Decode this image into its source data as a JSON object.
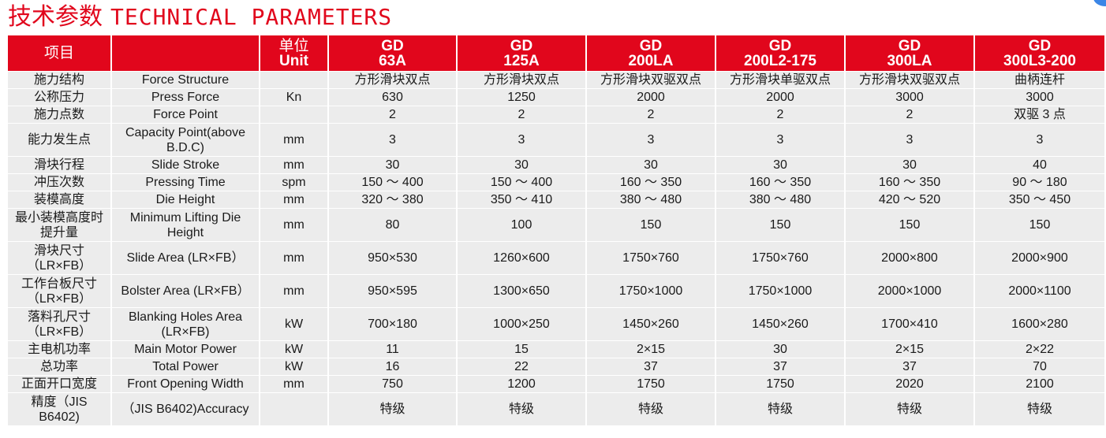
{
  "title": {
    "cn": "技术参数",
    "en": "TECHNICAL PARAMETERS"
  },
  "header": {
    "item": "项目",
    "blank": "",
    "unit_cn": "单位",
    "unit_en": "Unit",
    "models": [
      [
        "GD",
        "63A"
      ],
      [
        "GD",
        "125A"
      ],
      [
        "GD",
        "200LA"
      ],
      [
        "GD",
        "200L2-175"
      ],
      [
        "GD",
        "300LA"
      ],
      [
        "GD",
        "300L3-200"
      ]
    ]
  },
  "rows": [
    {
      "cn": "施力结构",
      "en": "Force Structure",
      "unit": "",
      "values": [
        "方形滑块双点",
        "方形滑块双点",
        "方形滑块双驱双点",
        "方形滑块单驱双点",
        "方形滑块双驱双点",
        "曲柄连杆"
      ]
    },
    {
      "cn": "公称压力",
      "en": "Press Force",
      "unit": "Kn",
      "values": [
        "630",
        "1250",
        "2000",
        "2000",
        "3000",
        "3000"
      ]
    },
    {
      "cn": "施力点数",
      "en": "Force Point",
      "unit": "",
      "values": [
        "2",
        "2",
        "2",
        "2",
        "2",
        "双驱 3 点"
      ]
    },
    {
      "cn": "能力发生点",
      "en": "Capacity Point(above B.D.C)",
      "unit": "mm",
      "values": [
        "3",
        "3",
        "3",
        "3",
        "3",
        "3"
      ],
      "tall": true
    },
    {
      "cn": "滑块行程",
      "en": "Slide Stroke",
      "unit": "mm",
      "values": [
        "30",
        "30",
        "30",
        "30",
        "30",
        "40"
      ]
    },
    {
      "cn": "冲压次数",
      "en": "Pressing Time",
      "unit": "spm",
      "values": [
        "150 ～ 400",
        "150 ～ 400",
        "160 ～ 350",
        "160 ～ 350",
        "160 ～ 350",
        "90 ～ 180"
      ]
    },
    {
      "cn": "装模高度",
      "en": "Die Height",
      "unit": "mm",
      "values": [
        "320 ～ 380",
        "350 ～ 410",
        "380 ～ 480",
        "380 ～ 480",
        "420 ～ 520",
        "350 ～ 450"
      ]
    },
    {
      "cn": "最小装模高度时提升量",
      "en": "Minimum Lifting Die Height",
      "unit": "mm",
      "values": [
        "80",
        "100",
        "150",
        "150",
        "150",
        "150"
      ],
      "tall": true
    },
    {
      "cn": "滑块尺寸（LR×FB）",
      "en": "Slide Area (LR×FB）",
      "unit": "mm",
      "values": [
        "950×530",
        "1260×600",
        "1750×760",
        "1750×760",
        "2000×800",
        "2000×900"
      ],
      "tall": true
    },
    {
      "cn": "工作台板尺寸（LR×FB）",
      "en": "Bolster Area (LR×FB）",
      "unit": "mm",
      "values": [
        "950×595",
        "1300×650",
        "1750×1000",
        "1750×1000",
        "2000×1000",
        "2000×1100"
      ],
      "tall": true
    },
    {
      "cn": "落料孔尺寸（LR×FB）",
      "en": "Blanking Holes Area (LR×FB)",
      "unit": "kW",
      "values": [
        "700×180",
        "1000×250",
        "1450×260",
        "1450×260",
        "1700×410",
        "1600×280"
      ],
      "tall": true
    },
    {
      "cn": "主电机功率",
      "en": "Main Motor Power",
      "unit": "kW",
      "values": [
        "11",
        "15",
        "2×15",
        "30",
        "2×15",
        "2×22"
      ]
    },
    {
      "cn": "总功率",
      "en": "Total Power",
      "unit": "kW",
      "values": [
        "16",
        "22",
        "37",
        "37",
        "37",
        "70"
      ]
    },
    {
      "cn": "正面开口宽度",
      "en": "Front Opening Width",
      "unit": "mm",
      "values": [
        "750",
        "1200",
        "1750",
        "1750",
        "2020",
        "2100"
      ]
    },
    {
      "cn": "精度（JIS B6402)",
      "en": "（JIS B6402)Accuracy",
      "unit": "",
      "values": [
        "特级",
        "特级",
        "特级",
        "特级",
        "特级",
        "特级"
      ],
      "tall": true
    }
  ],
  "colors": {
    "accent": "#e1061c",
    "cell": "#ececec"
  }
}
